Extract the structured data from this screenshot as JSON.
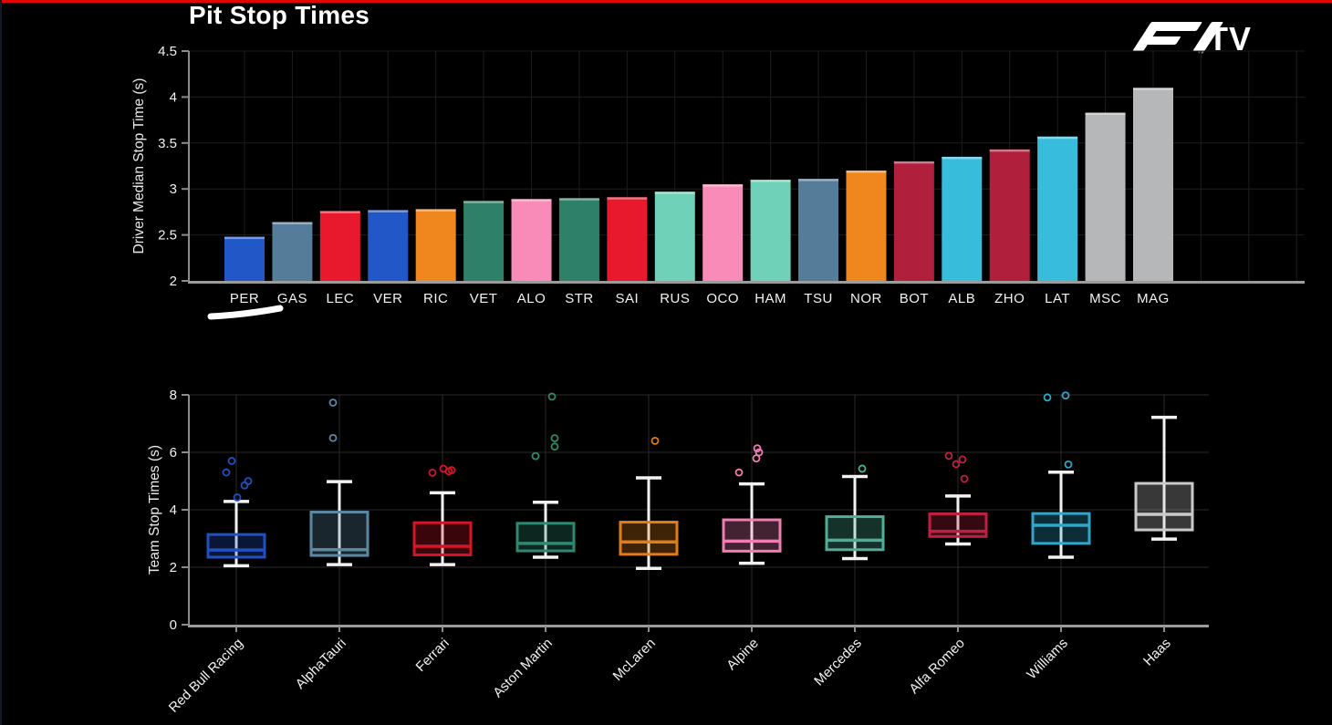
{
  "page": {
    "title": "Pit Stop Times",
    "brand": {
      "f1_wordmark": "F1",
      "tm": "™",
      "tv_label": "TV"
    },
    "colors": {
      "accent_red": "#e10600",
      "background": "#000000",
      "text": "#f2f2f2"
    }
  },
  "team_palette": {
    "redbull": {
      "bar": "#2257c7",
      "stroke": "#2150c0"
    },
    "alphatauri": {
      "bar": "#557c99",
      "stroke": "#5c87a3"
    },
    "ferrari": {
      "bar": "#e8192c",
      "stroke": "#d41528"
    },
    "mclaren": {
      "bar": "#f0861e",
      "stroke": "#e07c1a"
    },
    "astonmartin": {
      "bar": "#2e8069",
      "stroke": "#2f8871"
    },
    "alpine": {
      "bar": "#f98bb9",
      "stroke": "#ef7fb2"
    },
    "mercedes": {
      "bar": "#6fd1b8",
      "stroke": "#4fae97"
    },
    "alfaromeo": {
      "bar": "#b01f3c",
      "stroke": "#c02040"
    },
    "williams": {
      "bar": "#38bcdc",
      "stroke": "#2fa7c9"
    },
    "haas": {
      "bar": "#b5b7b9",
      "stroke": "#c8cacc"
    }
  },
  "chart_data": [
    {
      "type": "bar",
      "ylabel": "Driver Median Stop Time (s)",
      "ylim": [
        2,
        4.5
      ],
      "yticks": [
        2,
        2.5,
        3,
        3.5,
        4,
        4.5
      ],
      "grid": true,
      "legend": "none",
      "categories": [
        "PER",
        "GAS",
        "LEC",
        "VER",
        "RIC",
        "VET",
        "ALO",
        "STR",
        "SAI",
        "RUS",
        "OCO",
        "HAM",
        "TSU",
        "NOR",
        "BOT",
        "ALB",
        "ZHO",
        "LAT",
        "MSC",
        "MAG"
      ],
      "values": [
        2.48,
        2.64,
        2.76,
        2.77,
        2.78,
        2.87,
        2.89,
        2.9,
        2.91,
        2.97,
        3.05,
        3.1,
        3.11,
        3.2,
        3.3,
        3.35,
        3.43,
        3.57,
        3.83,
        4.1
      ],
      "teams": [
        "redbull",
        "alphatauri",
        "ferrari",
        "redbull",
        "mclaren",
        "astonmartin",
        "alpine",
        "astonmartin",
        "ferrari",
        "mercedes",
        "alpine",
        "mercedes",
        "alphatauri",
        "mclaren",
        "alfaromeo",
        "williams",
        "alfaromeo",
        "williams",
        "haas",
        "haas"
      ],
      "highlight": {
        "category": "PER",
        "style": "white-underline-swoosh"
      }
    },
    {
      "type": "box",
      "ylabel": "Team Stop Times (s)",
      "ylim": [
        0,
        8
      ],
      "yticks": [
        0,
        2,
        4,
        6,
        8
      ],
      "grid": true,
      "categories": [
        "Red Bull Racing",
        "AlphaTauri",
        "Ferrari",
        "Aston Martin",
        "McLaren",
        "Alpine",
        "Mercedes",
        "Alfa Romeo",
        "Williams",
        "Haas"
      ],
      "series": [
        {
          "name": "Red Bull Racing",
          "team": "redbull",
          "whisker_low": 2.05,
          "q1": 2.35,
          "median": 2.6,
          "q3": 3.14,
          "whisker_high": 4.29,
          "outliers": [
            {
              "dx": -5,
              "v": 5.7
            },
            {
              "dx": -11,
              "v": 5.3
            },
            {
              "dx": 13,
              "v": 5.0
            },
            {
              "dx": 9,
              "v": 4.85
            },
            {
              "dx": 1,
              "v": 4.43
            }
          ]
        },
        {
          "name": "AlphaTauri",
          "team": "alphatauri",
          "whisker_low": 2.09,
          "q1": 2.41,
          "median": 2.61,
          "q3": 3.92,
          "whisker_high": 4.98,
          "outliers": [
            {
              "dx": -7,
              "v": 7.73
            },
            {
              "dx": -7,
              "v": 6.5
            }
          ]
        },
        {
          "name": "Ferrari",
          "team": "ferrari",
          "whisker_low": 2.09,
          "q1": 2.43,
          "median": 2.73,
          "q3": 3.55,
          "whisker_high": 4.59,
          "outliers": [
            {
              "dx": -11,
              "v": 5.29
            },
            {
              "dx": 1,
              "v": 5.43
            },
            {
              "dx": 7,
              "v": 5.34
            },
            {
              "dx": 10,
              "v": 5.38
            }
          ]
        },
        {
          "name": "Aston Martin",
          "team": "astonmartin",
          "whisker_low": 2.35,
          "q1": 2.57,
          "median": 2.83,
          "q3": 3.53,
          "whisker_high": 4.26,
          "outliers": [
            {
              "dx": 7,
              "v": 7.94
            },
            {
              "dx": 10,
              "v": 6.49
            },
            {
              "dx": 10,
              "v": 6.2
            },
            {
              "dx": -11,
              "v": 5.87
            }
          ]
        },
        {
          "name": "McLaren",
          "team": "mclaren",
          "whisker_low": 1.96,
          "q1": 2.45,
          "median": 2.88,
          "q3": 3.57,
          "whisker_high": 5.11,
          "outliers": [
            {
              "dx": 7,
              "v": 6.4
            }
          ]
        },
        {
          "name": "Alpine",
          "team": "alpine",
          "whisker_low": 2.14,
          "q1": 2.56,
          "median": 2.91,
          "q3": 3.65,
          "whisker_high": 4.9,
          "outliers": [
            {
              "dx": 6,
              "v": 6.14
            },
            {
              "dx": 8,
              "v": 6.0
            },
            {
              "dx": 5,
              "v": 5.79
            },
            {
              "dx": -14,
              "v": 5.3
            }
          ]
        },
        {
          "name": "Mercedes",
          "team": "mercedes",
          "whisker_low": 2.3,
          "q1": 2.61,
          "median": 2.94,
          "q3": 3.76,
          "whisker_high": 5.16,
          "outliers": [
            {
              "dx": 8,
              "v": 5.43
            }
          ]
        },
        {
          "name": "Alfa Romeo",
          "team": "alfaromeo",
          "whisker_low": 2.81,
          "q1": 3.07,
          "median": 3.25,
          "q3": 3.86,
          "whisker_high": 4.48,
          "outliers": [
            {
              "dx": -10,
              "v": 5.88
            },
            {
              "dx": -2,
              "v": 5.59
            },
            {
              "dx": 5,
              "v": 5.75
            },
            {
              "dx": 7,
              "v": 5.08
            }
          ]
        },
        {
          "name": "Williams",
          "team": "williams",
          "whisker_low": 2.35,
          "q1": 2.83,
          "median": 3.46,
          "q3": 3.87,
          "whisker_high": 5.31,
          "outliers": [
            {
              "dx": -15,
              "v": 7.91
            },
            {
              "dx": 5,
              "v": 7.98
            },
            {
              "dx": 8,
              "v": 5.58
            }
          ]
        },
        {
          "name": "Haas",
          "team": "haas",
          "whisker_low": 2.98,
          "q1": 3.3,
          "median": 3.84,
          "q3": 4.92,
          "whisker_high": 7.22,
          "outliers": []
        }
      ]
    }
  ]
}
